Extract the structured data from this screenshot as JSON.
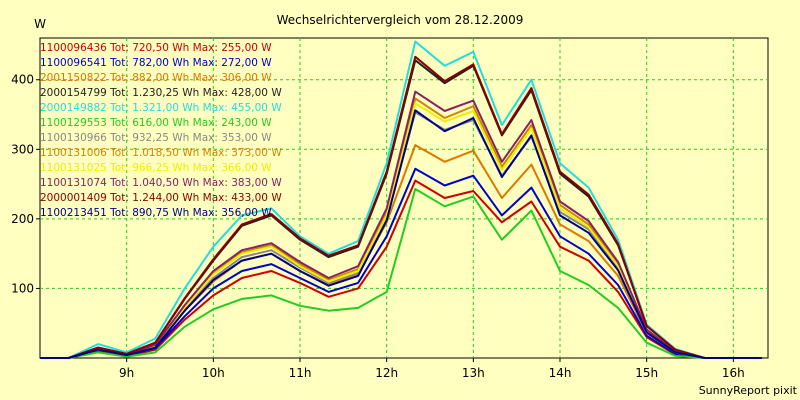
{
  "chart_data": {
    "type": "line",
    "title": "Wechselrichtervergleich vom 28.12.2009",
    "ylabel": "W",
    "xlabel": "",
    "credit": "SunnyReport pixit",
    "xlim": [
      8.0,
      16.4
    ],
    "ylim": [
      0,
      460
    ],
    "x_ticks": [
      {
        "value": 9,
        "label": "9h"
      },
      {
        "value": 10,
        "label": "10h"
      },
      {
        "value": 11,
        "label": "11h"
      },
      {
        "value": 12,
        "label": "12h"
      },
      {
        "value": 13,
        "label": "13h"
      },
      {
        "value": 14,
        "label": "14h"
      },
      {
        "value": 15,
        "label": "15h"
      },
      {
        "value": 16,
        "label": "16h"
      }
    ],
    "y_ticks": [
      {
        "value": 100,
        "label": "100"
      },
      {
        "value": 200,
        "label": "200"
      },
      {
        "value": 300,
        "label": "300"
      },
      {
        "value": 400,
        "label": "400"
      }
    ],
    "grid": true,
    "legend_position": "top-left",
    "x": [
      8.0,
      8.33,
      8.67,
      9.0,
      9.33,
      9.67,
      10.0,
      10.33,
      10.67,
      11.0,
      11.33,
      11.67,
      12.0,
      12.33,
      12.67,
      13.0,
      13.33,
      13.67,
      14.0,
      14.33,
      14.67,
      15.0,
      15.33,
      15.67,
      16.0,
      16.33
    ],
    "series": [
      {
        "name": "1100096436 Tot: 720,50 Wh Max: 255,00 W",
        "color": "#cc0000",
        "values": [
          0,
          0,
          10,
          3,
          12,
          55,
          90,
          115,
          125,
          108,
          88,
          100,
          160,
          255,
          230,
          240,
          195,
          225,
          160,
          140,
          95,
          30,
          5,
          0,
          0,
          0
        ]
      },
      {
        "name": "1100096541 Tot: 782,00 Wh Max: 272,00 W",
        "color": "#0000cc",
        "values": [
          0,
          0,
          12,
          4,
          14,
          60,
          100,
          125,
          135,
          115,
          95,
          108,
          175,
          272,
          248,
          262,
          205,
          245,
          175,
          150,
          105,
          32,
          6,
          0,
          0,
          0
        ]
      },
      {
        "name": "2001150822 Tot: 882,00 Wh Max: 306,00 W",
        "color": "#dd7700",
        "values": [
          0,
          0,
          13,
          5,
          16,
          68,
          110,
          140,
          150,
          125,
          105,
          120,
          195,
          306,
          282,
          298,
          230,
          278,
          192,
          168,
          118,
          36,
          8,
          0,
          0,
          0
        ]
      },
      {
        "name": "2000154799 Tot: 1.230,25 Wh Max: 428,00 W",
        "color": "#222222",
        "values": [
          0,
          0,
          15,
          6,
          22,
          85,
          140,
          190,
          205,
          170,
          145,
          160,
          265,
          428,
          395,
          420,
          320,
          385,
          265,
          232,
          162,
          46,
          12,
          0,
          0,
          0
        ]
      },
      {
        "name": "2000149882 Tot: 1.321,00 Wh Max: 455,00 W",
        "color": "#22dddd",
        "values": [
          0,
          0,
          20,
          8,
          28,
          100,
          160,
          205,
          215,
          175,
          150,
          168,
          280,
          455,
          420,
          440,
          335,
          400,
          280,
          245,
          170,
          48,
          13,
          0,
          0,
          0
        ]
      },
      {
        "name": "1100129553 Tot: 616,00 Wh Max: 243,00 W",
        "color": "#22cc22",
        "values": [
          0,
          0,
          8,
          2,
          8,
          45,
          70,
          85,
          90,
          75,
          68,
          72,
          95,
          243,
          218,
          232,
          170,
          212,
          125,
          105,
          72,
          22,
          3,
          0,
          0,
          0
        ]
      },
      {
        "name": "1100130966 Tot: 932,25 Wh Max: 353,00 W",
        "color": "#888888",
        "values": [
          0,
          0,
          12,
          4,
          16,
          70,
          115,
          145,
          155,
          130,
          108,
          122,
          200,
          353,
          328,
          342,
          262,
          318,
          210,
          185,
          130,
          38,
          8,
          0,
          0,
          0
        ]
      },
      {
        "name": "1100131006 Tot: 1.018,50 Wh Max: 373,00 W",
        "color": "#cc8800",
        "values": [
          0,
          0,
          13,
          5,
          18,
          74,
          122,
          152,
          162,
          135,
          112,
          128,
          210,
          373,
          345,
          362,
          275,
          335,
          220,
          192,
          135,
          40,
          9,
          0,
          0,
          0
        ]
      },
      {
        "name": "1100131025 Tot: 966,25 Wh Max: 366,00 W",
        "color": "#eeee00",
        "values": [
          0,
          0,
          13,
          5,
          17,
          72,
          120,
          150,
          160,
          132,
          110,
          125,
          205,
          366,
          340,
          355,
          270,
          330,
          215,
          188,
          132,
          39,
          8,
          0,
          0,
          0
        ]
      },
      {
        "name": "1100131074 Tot: 1.040,50 Wh Max: 383,00 W",
        "color": "#882266",
        "values": [
          0,
          0,
          14,
          5,
          19,
          76,
          125,
          155,
          165,
          138,
          115,
          132,
          215,
          383,
          355,
          370,
          282,
          342,
          225,
          197,
          138,
          41,
          9,
          0,
          0,
          0
        ]
      },
      {
        "name": "2000001409 Tot: 1.244,00 Wh Max: 433,00 W",
        "color": "#880000",
        "values": [
          0,
          0,
          15,
          6,
          22,
          86,
          142,
          192,
          207,
          172,
          147,
          162,
          268,
          433,
          398,
          422,
          322,
          388,
          268,
          235,
          164,
          46,
          12,
          0,
          0,
          0
        ]
      },
      {
        "name": "1100213451 Tot: 890,75 Wh Max: 356,00 W",
        "color": "#000088",
        "values": [
          0,
          0,
          12,
          4,
          15,
          68,
          112,
          140,
          150,
          125,
          104,
          118,
          198,
          356,
          326,
          345,
          260,
          320,
          205,
          180,
          126,
          37,
          8,
          0,
          0,
          0
        ]
      }
    ]
  }
}
